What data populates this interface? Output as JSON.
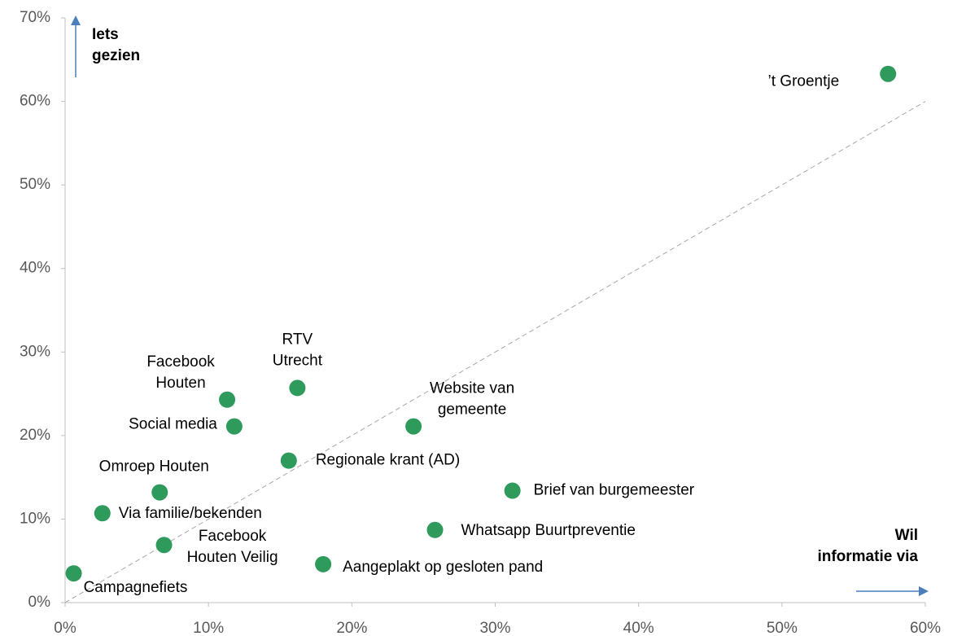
{
  "chart_data": {
    "type": "scatter",
    "color": "#2e9a5c",
    "x": [
      57.4,
      16.2,
      11.3,
      11.8,
      24.3,
      15.6,
      31.2,
      6.6,
      2.6,
      25.8,
      6.9,
      18.0,
      0.6
    ],
    "values": [
      63.3,
      25.7,
      24.3,
      21.1,
      21.1,
      17.0,
      13.4,
      13.2,
      10.7,
      8.7,
      6.9,
      4.6,
      3.5
    ],
    "labels": [
      [
        "’t Groentje"
      ],
      [
        "RTV",
        "Utrecht"
      ],
      [
        "Facebook",
        "Houten"
      ],
      [
        "Social media"
      ],
      [
        "Website van",
        "gemeente"
      ],
      [
        "Regionale krant (AD)"
      ],
      [
        "Brief van burgemeester"
      ],
      [
        "Omroep Houten"
      ],
      [
        "Via familie/bekenden"
      ],
      [
        "Whatsapp Buurtpreventie"
      ],
      [
        "Facebook",
        "Houten Veilig"
      ],
      [
        "Aangeplakt op gesloten pand"
      ],
      [
        "Campagnefiets"
      ]
    ],
    "xlim": [
      0,
      60
    ],
    "ylim": [
      0,
      70
    ],
    "xticks": [
      {
        "value": 0,
        "label": "0%"
      },
      {
        "value": 10,
        "label": "10%"
      },
      {
        "value": 20,
        "label": "20%"
      },
      {
        "value": 30,
        "label": "30%"
      },
      {
        "value": 40,
        "label": "40%"
      },
      {
        "value": 50,
        "label": "50%"
      },
      {
        "value": 60,
        "label": "60%"
      }
    ],
    "yticks": [
      {
        "value": 0,
        "label": "0%"
      },
      {
        "value": 10,
        "label": "10%"
      },
      {
        "value": 20,
        "label": "20%"
      },
      {
        "value": 30,
        "label": "30%"
      },
      {
        "value": 40,
        "label": "40%"
      },
      {
        "value": 50,
        "label": "50%"
      },
      {
        "value": 60,
        "label": "60%"
      },
      {
        "value": 70,
        "label": "70%"
      }
    ],
    "diagonal": {
      "x": [
        0,
        60
      ],
      "y": [
        0,
        60
      ]
    },
    "y_annotation": [
      "Iets",
      "gezien"
    ],
    "x_annotation": [
      "Wil",
      "informatie via"
    ]
  }
}
